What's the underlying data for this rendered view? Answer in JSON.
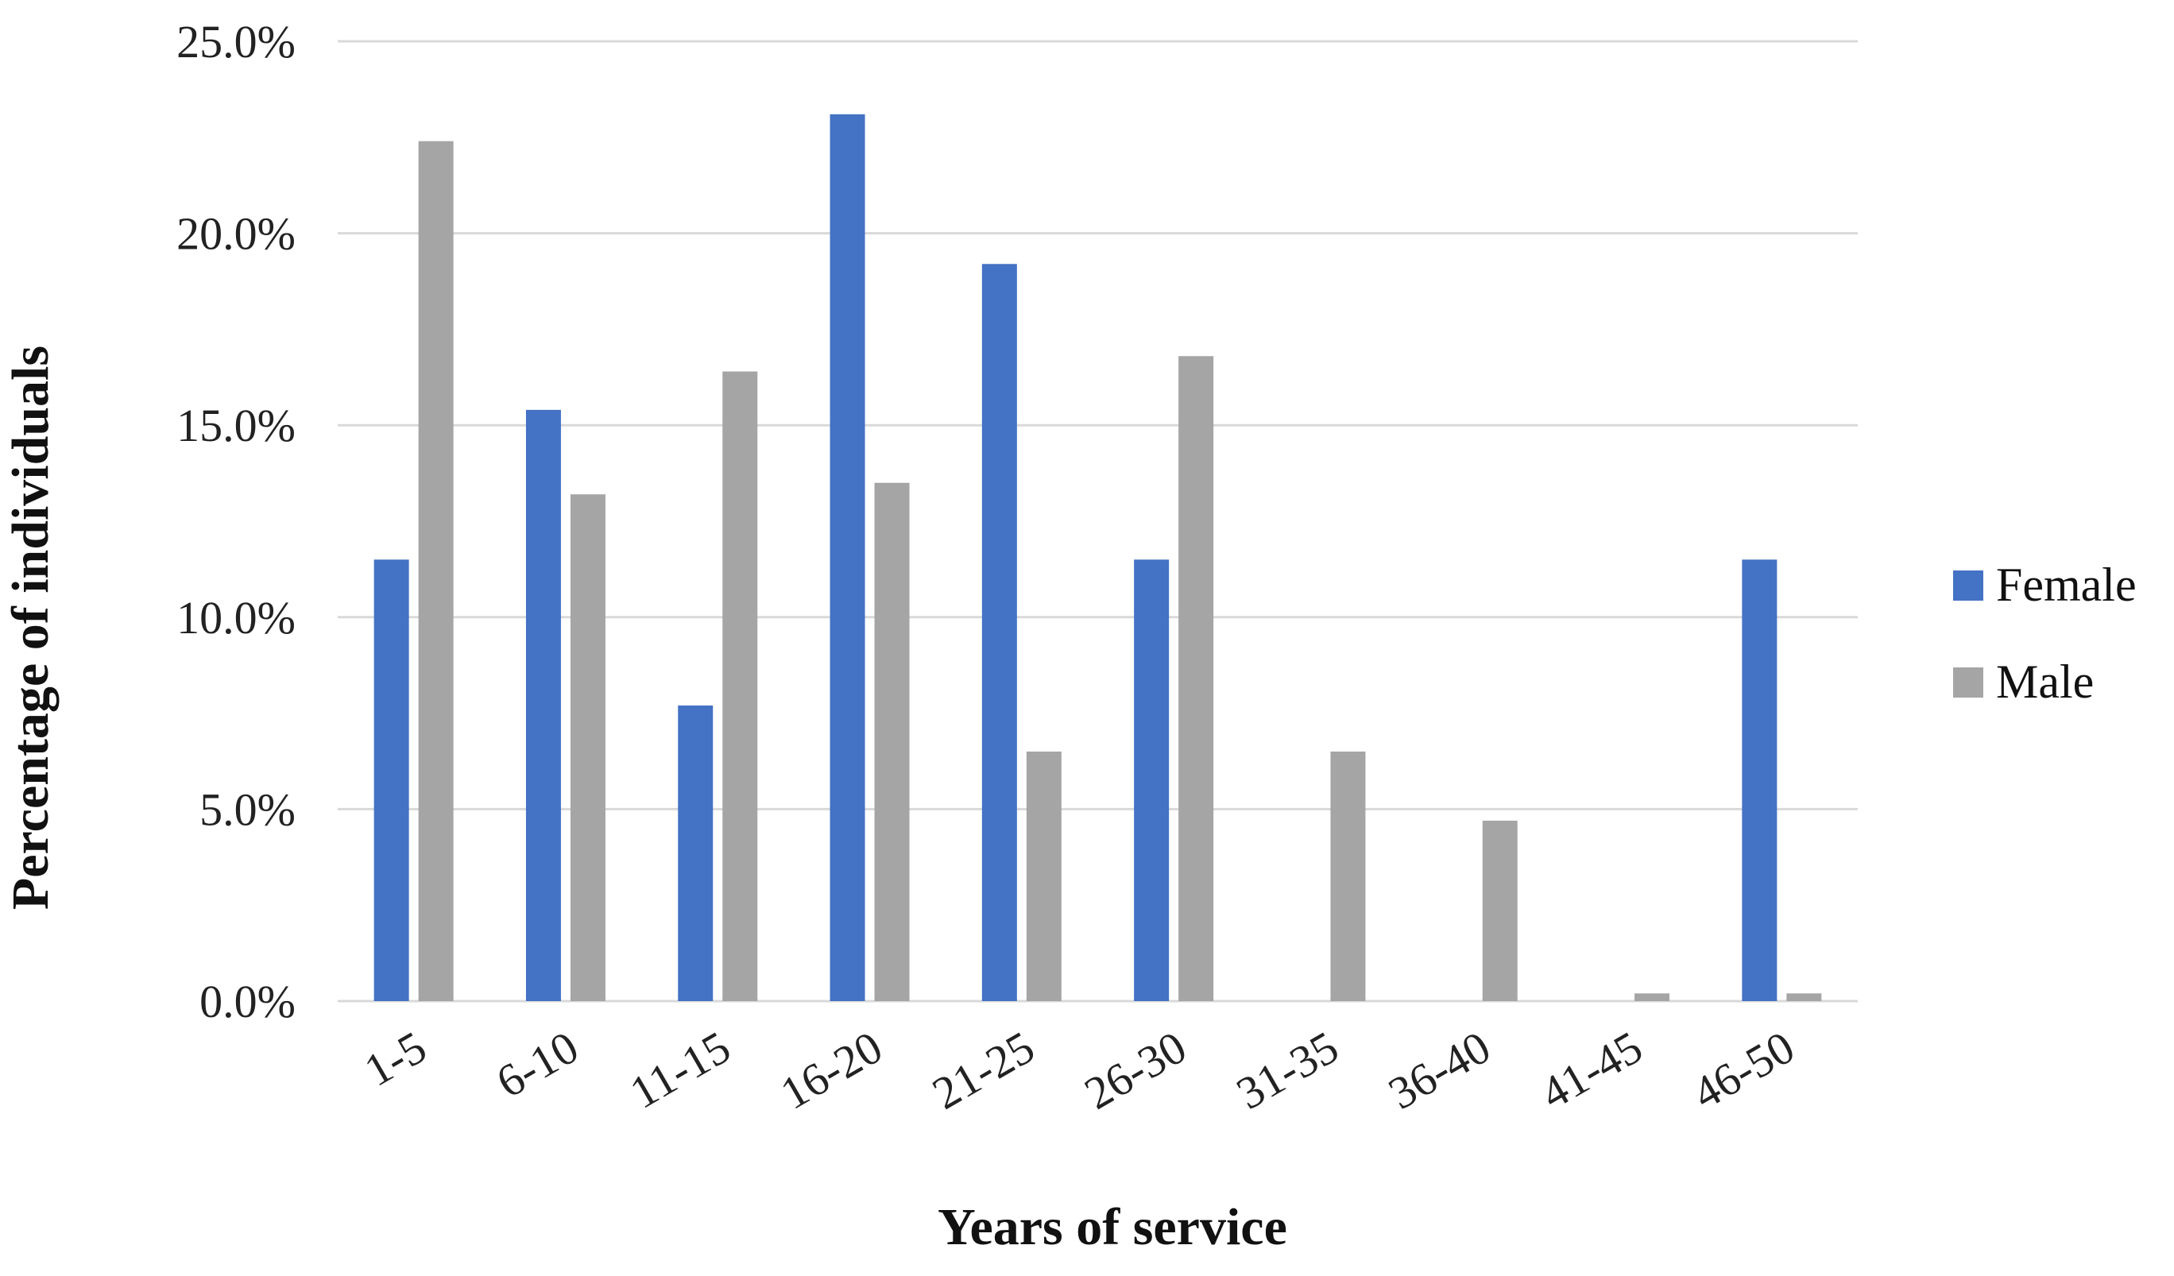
{
  "chart_data": {
    "type": "bar",
    "categories": [
      "1-5",
      "6-10",
      "11-15",
      "16-20",
      "21-25",
      "26-30",
      "31-35",
      "36-40",
      "41-45",
      "46-50"
    ],
    "series": [
      {
        "name": "Female",
        "color": "#4472C4",
        "values": [
          11.5,
          15.4,
          7.7,
          23.1,
          19.2,
          11.5,
          0.0,
          0.0,
          0.0,
          11.5
        ]
      },
      {
        "name": "Male",
        "color": "#A5A5A5",
        "values": [
          22.4,
          13.2,
          16.4,
          13.5,
          6.5,
          16.8,
          6.5,
          4.7,
          0.2,
          0.2
        ]
      }
    ],
    "title": "",
    "xlabel": "Years of service",
    "ylabel": "Percentage of individuals",
    "ylim": [
      0,
      25
    ],
    "y_ticks": [
      "0.0%",
      "5.0%",
      "10.0%",
      "15.0%",
      "20.0%",
      "25.0%"
    ],
    "y_tick_values": [
      0,
      5,
      10,
      15,
      20,
      25
    ],
    "grid": true,
    "gridline_color": "#D9D9D9",
    "legend_position": "right"
  }
}
